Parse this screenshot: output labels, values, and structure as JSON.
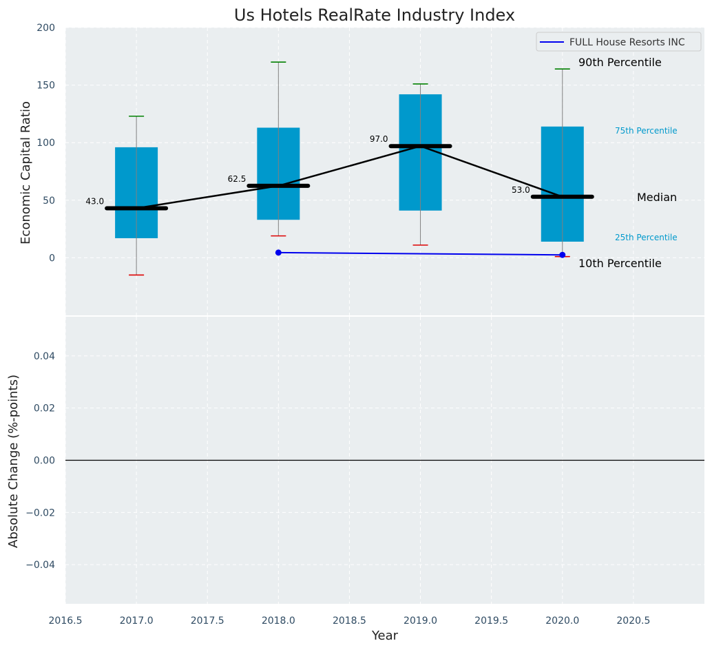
{
  "chart_data": [
    {
      "type": "box",
      "title": "Us Hotels RealRate Industry Index",
      "ylabel": "Economic Capital Ratio",
      "ylim": [
        -50,
        200
      ],
      "yticks": [
        0,
        50,
        100,
        150,
        200
      ],
      "grid": true,
      "boxes": [
        {
          "x": 2017.0,
          "p10": -15,
          "p25": 17,
          "median": 43.0,
          "p75": 96,
          "p90": 123,
          "median_label": "43.0"
        },
        {
          "x": 2018.0,
          "p10": 19,
          "p25": 33,
          "median": 62.5,
          "p75": 113,
          "p90": 170,
          "median_label": "62.5"
        },
        {
          "x": 2019.0,
          "p10": 11,
          "p25": 41,
          "median": 97.0,
          "p75": 142,
          "p90": 151,
          "median_label": "97.0"
        },
        {
          "x": 2020.0,
          "p10": 1,
          "p25": 14,
          "median": 53.0,
          "p75": 114,
          "p90": 164,
          "median_label": "53.0"
        }
      ],
      "series": [
        {
          "name": "FULL House Resorts INC",
          "color": "#0000ee",
          "x": [
            2018.0,
            2020.0
          ],
          "values": [
            4.5,
            2.5
          ]
        }
      ],
      "annotations": {
        "p90": "90th Percentile",
        "p75": "75th Percentile",
        "median": "Median",
        "p25": "25th Percentile",
        "p10": "10th Percentile"
      },
      "legend": {
        "position": "top-right",
        "label": "FULL House Resorts INC"
      }
    },
    {
      "type": "line",
      "ylabel": "Absolute Change (%-points)",
      "xlabel": "Year",
      "ylim": [
        -0.055,
        0.055
      ],
      "yticks": [
        -0.04,
        -0.02,
        0.0,
        0.02,
        0.04
      ],
      "ytick_labels": [
        "−0.04",
        "−0.02",
        "0.00",
        "0.02",
        "0.04"
      ],
      "xlim": [
        2016.5,
        2021.0
      ],
      "xticks": [
        2016.5,
        2017.0,
        2017.5,
        2018.0,
        2018.5,
        2019.0,
        2019.5,
        2020.0,
        2020.5
      ],
      "xtick_labels": [
        "2016.5",
        "2017.0",
        "2017.5",
        "2018.0",
        "2018.5",
        "2019.0",
        "2019.5",
        "2020.0",
        "2020.5"
      ],
      "series": [],
      "reference_line": 0.0,
      "grid": true
    }
  ],
  "colors": {
    "box": "#0099cc",
    "median": "#000000",
    "whisker_top": "#008000",
    "whisker_bottom": "#dd0000",
    "series": "#0000ee",
    "panel_bg": "#eaeef0",
    "tick_text": "#2e4a62",
    "annotation_percentile": "#0099cc"
  }
}
